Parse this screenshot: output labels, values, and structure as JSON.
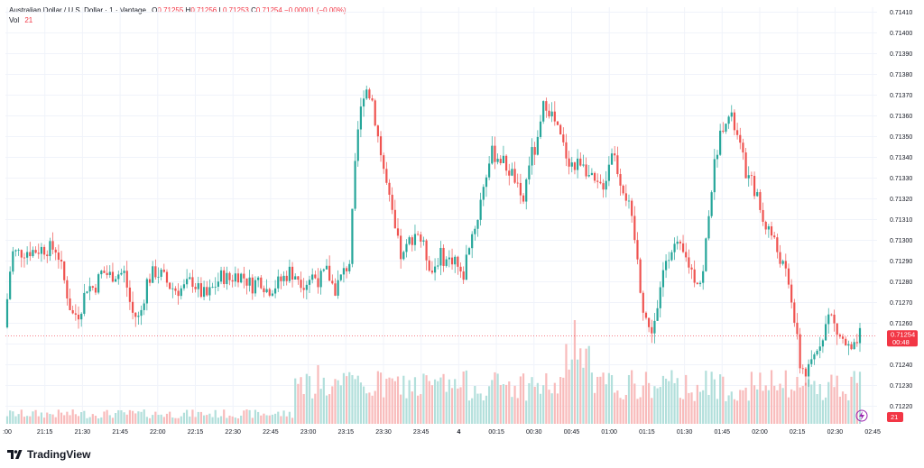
{
  "header": {
    "symbol": "Australian Dollar / U.S. Dollar · 1 · Vantage",
    "ohlc": [
      {
        "k": "O",
        "v": "0.71255"
      },
      {
        "k": "H",
        "v": "0.71256"
      },
      {
        "k": "L",
        "v": "0.71253"
      },
      {
        "k": "C",
        "v": "0.71254"
      }
    ],
    "change": "−0.00001 (−0.00%)",
    "vol_label": "Vol",
    "vol_value": "21"
  },
  "price_tag": {
    "price": "0.71254",
    "countdown": "00:48"
  },
  "vol_tag": "21",
  "brand": "TradingView",
  "colors": {
    "up": "#26a69a",
    "down": "#ef5350",
    "grid": "#f0f3fa",
    "text": "#131722",
    "price_line": "#f23645"
  },
  "chart_data": {
    "type": "candlestick",
    "ylim": [
      0.71215,
      0.71415
    ],
    "y_ticks": [
      "0.71410",
      "0.71400",
      "0.71390",
      "0.71380",
      "0.71370",
      "0.71360",
      "0.71350",
      "0.71340",
      "0.71330",
      "0.71320",
      "0.71310",
      "0.71300",
      "0.71290",
      "0.71280",
      "0.71270",
      "0.71260",
      "0.71250",
      "0.71240",
      "0.71230",
      "0.71220"
    ],
    "x_ticks": [
      ":00",
      "21:15",
      "21:30",
      "21:45",
      "22:00",
      "22:15",
      "22:30",
      "22:45",
      "23:00",
      "23:15",
      "23:30",
      "23:45",
      "4",
      "00:15",
      "00:30",
      "00:45",
      "01:00",
      "01:15",
      "01:30",
      "01:45",
      "02:00",
      "02:15",
      "02:30",
      "02:45"
    ],
    "last_price": 0.71254,
    "path": [
      0.71258,
      0.71294,
      0.71294,
      0.71295,
      0.71295,
      0.71296,
      0.71296,
      0.71296,
      0.7128,
      0.71264,
      0.71265,
      0.71278,
      0.71277,
      0.71285,
      0.71283,
      0.71284,
      0.71284,
      0.71265,
      0.71262,
      0.7128,
      0.71285,
      0.71283,
      0.71278,
      0.71276,
      0.71277,
      0.71281,
      0.71275,
      0.71273,
      0.71278,
      0.71283,
      0.71281,
      0.71284,
      0.71282,
      0.71278,
      0.71282,
      0.71276,
      0.71278,
      0.71281,
      0.71285,
      0.71283,
      0.71279,
      0.71283,
      0.71281,
      0.71285,
      0.71276,
      0.71283,
      0.7129,
      0.7135,
      0.71375,
      0.71368,
      0.71345,
      0.71325,
      0.71305,
      0.7129,
      0.713,
      0.71305,
      0.71295,
      0.71285,
      0.71293,
      0.7129,
      0.71292,
      0.7128,
      0.713,
      0.7131,
      0.7133,
      0.71342,
      0.7134,
      0.71335,
      0.7133,
      0.71315,
      0.7134,
      0.71345,
      0.71368,
      0.7136,
      0.7135,
      0.7134,
      0.71335,
      0.7134,
      0.7133,
      0.71325,
      0.71328,
      0.71345,
      0.7133,
      0.7132,
      0.713,
      0.7127,
      0.71255,
      0.71265,
      0.7129,
      0.71298,
      0.71295,
      0.7129,
      0.71282,
      0.7128,
      0.7132,
      0.71345,
      0.7136,
      0.71358,
      0.71345,
      0.7133,
      0.71325,
      0.7131,
      0.71305,
      0.71295,
      0.71285,
      0.7127,
      0.7124,
      0.71235,
      0.71245,
      0.71255,
      0.71265,
      0.71255,
      0.7125,
      0.71245,
      0.71254
    ],
    "volume": {
      "unit": "ticks",
      "last": 21
    }
  }
}
